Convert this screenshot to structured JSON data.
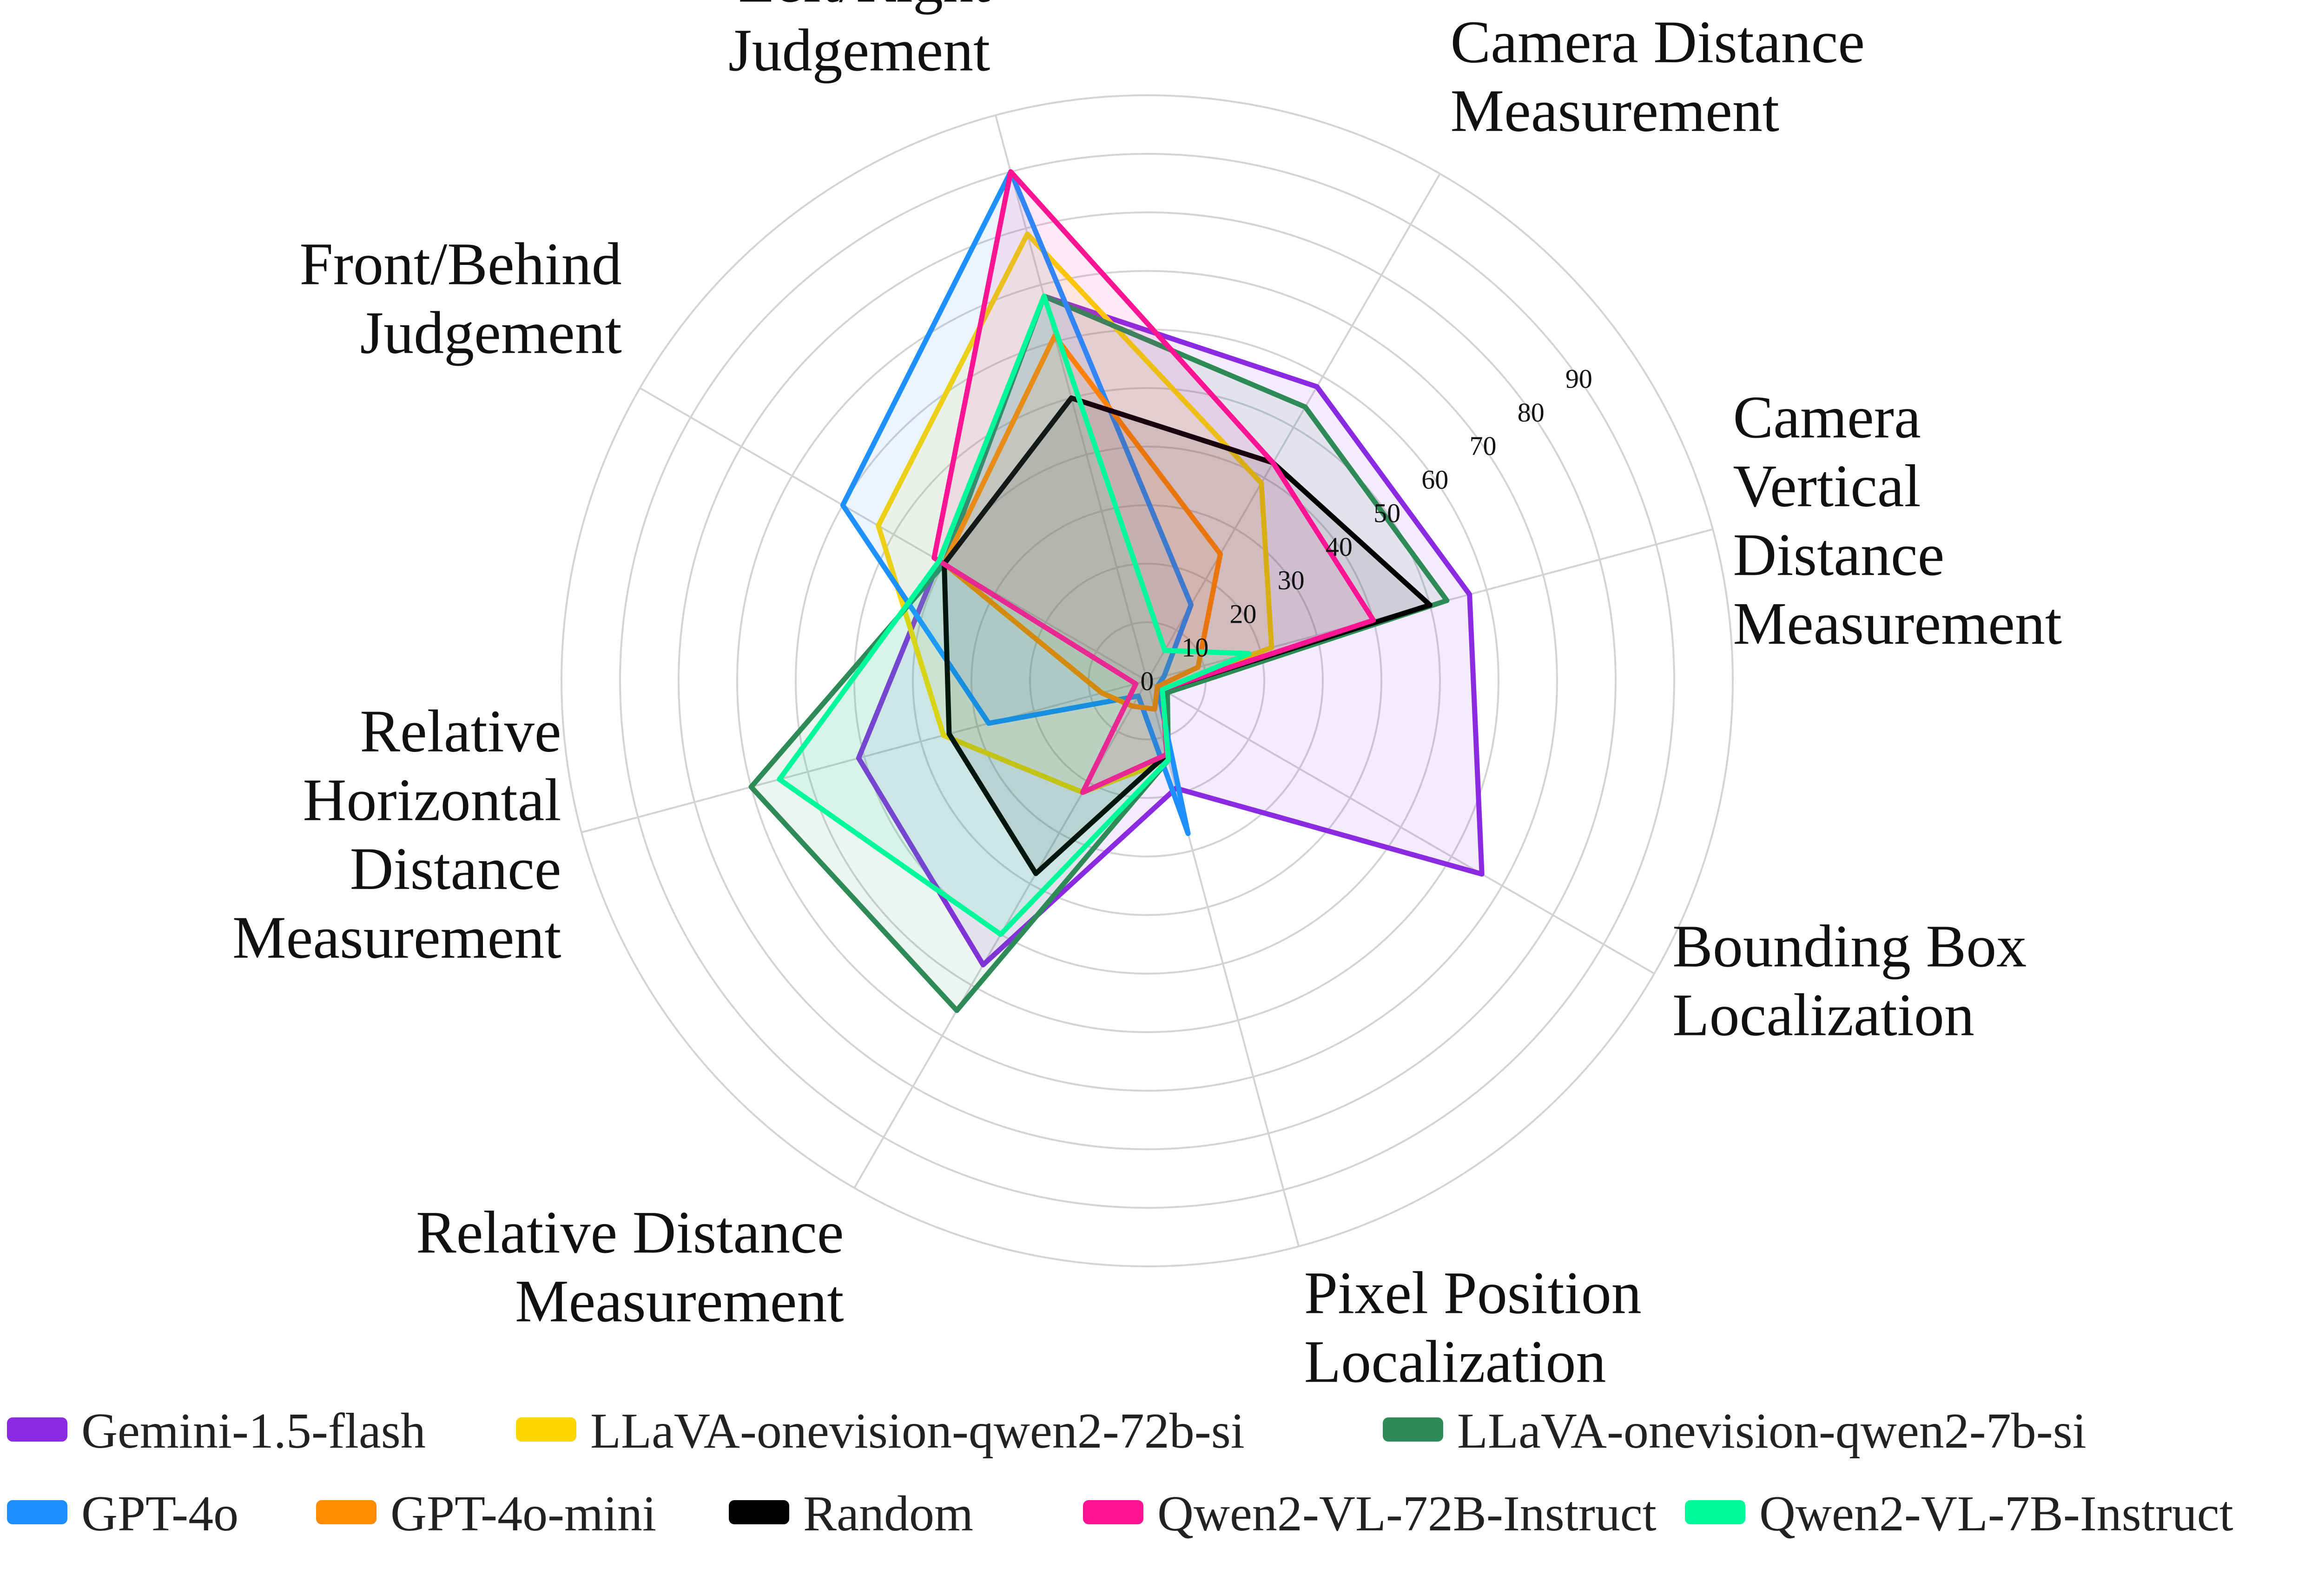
{
  "chart_data": {
    "type": "radar",
    "axes": [
      "Left/Right Judgement",
      "Camera Distance Measurement",
      "Camera Vertical Distance Measurement",
      "Bounding Box Localization",
      "Pixel Position Localization",
      "Relative Distance Measurement",
      "Relative Horizontal Distance Measurement",
      "Front/Behind Judgement"
    ],
    "axis_label_lines": [
      [
        "Left/Right",
        "Judgement"
      ],
      [
        "Camera Distance",
        "Measurement"
      ],
      [
        "Camera",
        "Vertical",
        "Distance",
        "Measurement"
      ],
      [
        "Bounding Box",
        "Localization"
      ],
      [
        "Pixel Position",
        "Localization"
      ],
      [
        "Relative Distance",
        "Measurement"
      ],
      [
        "Relative",
        "Horizontal",
        "Distance",
        "Measurement"
      ],
      [
        "Front/Behind",
        "Judgement"
      ]
    ],
    "radial_ticks": [
      0,
      10,
      20,
      30,
      40,
      50,
      60,
      70,
      80,
      90
    ],
    "rlim": [
      0,
      100
    ],
    "grid": true,
    "legend_position": "bottom",
    "series": [
      {
        "name": "Gemini-1.5-flash",
        "color": "#8a2be2",
        "values": [
          68,
          58,
          57,
          66,
          19,
          56,
          51,
          41
        ]
      },
      {
        "name": "LLaVA-onevision-qwen2-72b-si",
        "color": "#ffd700",
        "values": [
          79,
          39,
          22,
          3,
          14,
          22,
          36,
          53
        ]
      },
      {
        "name": "LLaVA-onevision-qwen2-7b-si",
        "color": "#2e8b57",
        "values": [
          68,
          54,
          53,
          4,
          14,
          65,
          70,
          40
        ]
      },
      {
        "name": "GPT-4o",
        "color": "#1e90ff",
        "values": [
          90,
          15,
          3,
          2,
          27,
          3,
          28,
          60
        ]
      },
      {
        "name": "GPT-4o-mini",
        "color": "#ff8c00",
        "values": [
          61,
          25,
          9,
          2,
          5,
          5,
          8,
          40
        ]
      },
      {
        "name": "Random",
        "color": "#000000",
        "values": [
          50,
          43,
          50,
          3,
          13,
          38,
          35,
          40
        ]
      },
      {
        "name": "Qwen2-VL-72B-Instruct",
        "color": "#ff1493",
        "values": [
          90,
          43,
          40,
          3,
          13,
          22,
          2,
          42
        ]
      },
      {
        "name": "Qwen2-VL-7B-Instruct",
        "color": "#00fa9a",
        "values": [
          68,
          6,
          18,
          3,
          14,
          50,
          65,
          41
        ]
      }
    ]
  }
}
